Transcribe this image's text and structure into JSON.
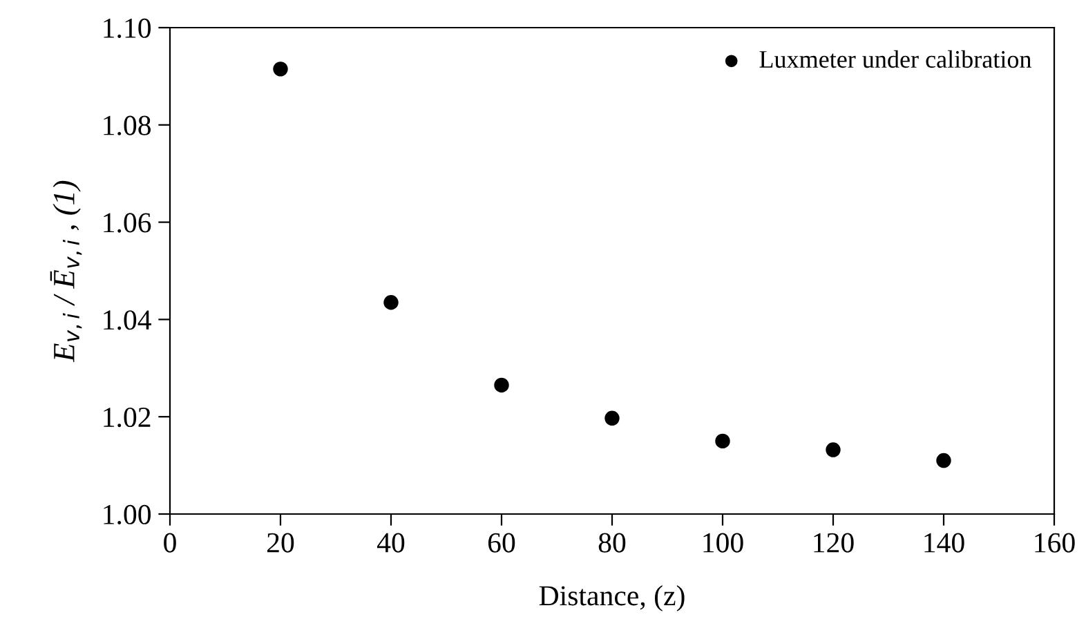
{
  "chart_data": {
    "type": "scatter",
    "xlabel": "Distance, (z)",
    "ylabel": "E$_{v,i}$ / Ē$_{v,i}$ , (1)",
    "x": [
      20,
      40,
      60,
      80,
      100,
      120,
      140
    ],
    "series": [
      {
        "name": "Luxmeter under calibration",
        "color": "#000000",
        "values": [
          1.0915,
          1.0435,
          1.0265,
          1.0197,
          1.015,
          1.0132,
          1.011
        ]
      }
    ],
    "xlim": [
      0,
      160
    ],
    "xticks": [
      0,
      20,
      40,
      60,
      80,
      100,
      120,
      140,
      160
    ],
    "ylim": [
      1.0,
      1.1
    ],
    "yticks": [
      {
        "value": 1.0,
        "label": "1.00"
      },
      {
        "value": 1.02,
        "label": "1.02"
      },
      {
        "value": 1.04,
        "label": "1.04"
      },
      {
        "value": 1.06,
        "label": "1.06"
      },
      {
        "value": 1.08,
        "label": "1.08"
      },
      {
        "value": 1.1,
        "label": "1.10"
      }
    ],
    "marker": "circle",
    "legend": "top right",
    "grid": false
  }
}
